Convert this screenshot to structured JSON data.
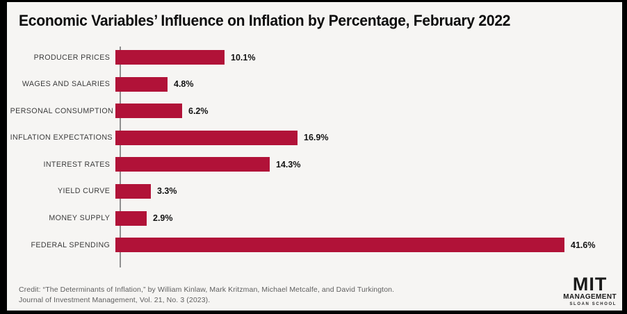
{
  "title": "Economic Variables’ Influence on Inflation by Percentage, February 2022",
  "chart_data": {
    "type": "bar",
    "orientation": "horizontal",
    "title": "Economic Variables’ Influence on Inflation by Percentage, February 2022",
    "categories": [
      "PRODUCER PRICES",
      "WAGES AND SALARIES",
      "PERSONAL CONSUMPTION",
      "INFLATION EXPECTATIONS",
      "INTEREST RATES",
      "YIELD CURVE",
      "MONEY SUPPLY",
      "FEDERAL SPENDING"
    ],
    "values": [
      10.1,
      4.8,
      6.2,
      16.9,
      14.3,
      3.3,
      2.9,
      41.6
    ],
    "value_labels": [
      "10.1%",
      "4.8%",
      "6.2%",
      "16.9%",
      "14.3%",
      "3.3%",
      "2.9%",
      "41.6%"
    ],
    "xlabel": "",
    "ylabel": "",
    "xlim": [
      0,
      45
    ],
    "grid": false,
    "legend": false,
    "bar_color": "#b11238"
  },
  "footer": {
    "credit_line1": "Credit: “The Determinants of Inflation,” by William Kinlaw, Mark Kritzman, Michael Metcalfe, and David Turkington.",
    "credit_line2": "Journal of Investment Management, Vol. 21, No. 3 (2023)."
  },
  "logo": {
    "line1": "MIT",
    "line2": "MANAGEMENT",
    "line3": "SLOAN SCHOOL"
  },
  "colors": {
    "background": "#f6f5f3",
    "frame": "#000000",
    "bar": "#b11238",
    "axis": "#8f8f8f",
    "title_text": "#0d0d0d",
    "category_label": "#3b3b3b",
    "value_label": "#141414",
    "credit_text": "#5f5f5f",
    "logo_text": "#1a1a1a"
  }
}
